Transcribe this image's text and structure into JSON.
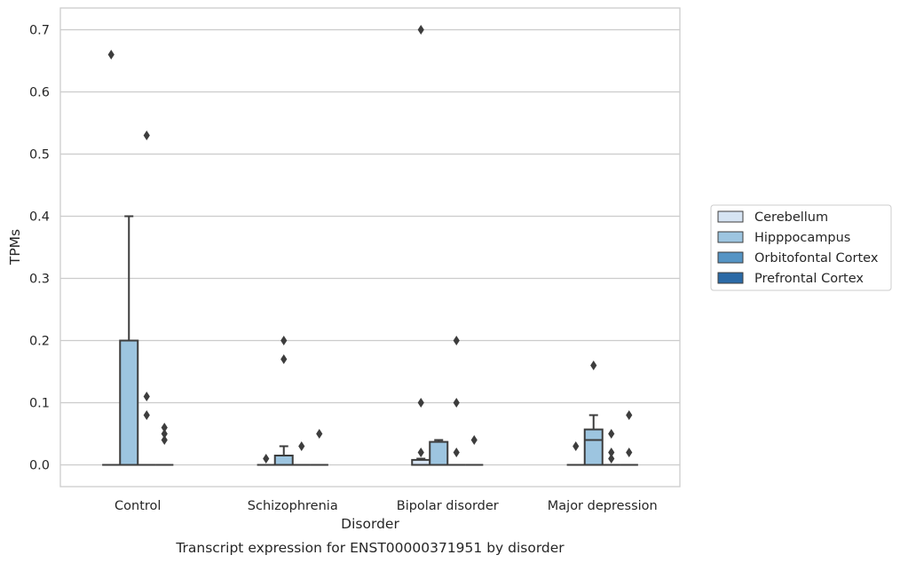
{
  "chart_data": {
    "type": "box",
    "caption": "Transcript expression for ENST00000371951 by disorder",
    "xlabel": "Disorder",
    "ylabel": "TPMs",
    "ylim": [
      -0.035,
      0.735
    ],
    "yticks": [
      "0.0",
      "0.1",
      "0.2",
      "0.3",
      "0.4",
      "0.5",
      "0.6",
      "0.7"
    ],
    "grid": "horizontal",
    "legend_position": "right",
    "categories": [
      "Control",
      "Schizophrenia",
      "Bipolar disorder",
      "Major depression"
    ],
    "series": [
      {
        "name": "Cerebellum",
        "color": "#d6e4f3",
        "boxes": [
          {
            "q1": 0,
            "median": 0,
            "q3": 0,
            "whisker_low": 0,
            "whisker_high": 0,
            "outliers": [
              0.66
            ]
          },
          {
            "q1": 0,
            "median": 0,
            "q3": 0,
            "whisker_low": 0,
            "whisker_high": 0,
            "outliers": [
              0.01
            ]
          },
          {
            "q1": 0,
            "median": 0,
            "q3": 0.008,
            "whisker_low": 0,
            "whisker_high": 0.01,
            "outliers": [
              0.1,
              0.02,
              0.7
            ]
          },
          {
            "q1": 0,
            "median": 0,
            "q3": 0,
            "whisker_low": 0,
            "whisker_high": 0,
            "outliers": [
              0.03
            ]
          }
        ]
      },
      {
        "name": "Hipppocampus",
        "color": "#9dc5e0",
        "boxes": [
          {
            "q1": 0,
            "median": 0,
            "q3": 0.2,
            "whisker_low": 0,
            "whisker_high": 0.4,
            "outliers": []
          },
          {
            "q1": 0,
            "median": 0,
            "q3": 0.015,
            "whisker_low": 0,
            "whisker_high": 0.03,
            "outliers": [
              0.2,
              0.17
            ]
          },
          {
            "q1": 0,
            "median": 0,
            "q3": 0.037,
            "whisker_low": 0,
            "whisker_high": 0.04,
            "outliers": []
          },
          {
            "q1": 0,
            "median": 0.04,
            "q3": 0.057,
            "whisker_low": 0,
            "whisker_high": 0.08,
            "outliers": [
              0.16
            ]
          }
        ]
      },
      {
        "name": "Orbitofontal Cortex",
        "color": "#5594c4",
        "boxes": [
          {
            "q1": 0,
            "median": 0,
            "q3": 0,
            "whisker_low": 0,
            "whisker_high": 0,
            "outliers": [
              0.11,
              0.08,
              0.53
            ]
          },
          {
            "q1": 0,
            "median": 0,
            "q3": 0,
            "whisker_low": 0,
            "whisker_high": 0,
            "outliers": [
              0.03
            ]
          },
          {
            "q1": 0,
            "median": 0,
            "q3": 0,
            "whisker_low": 0,
            "whisker_high": 0,
            "outliers": [
              0.1,
              0.2,
              0.02
            ]
          },
          {
            "q1": 0,
            "median": 0,
            "q3": 0,
            "whisker_low": 0,
            "whisker_high": 0,
            "outliers": [
              0.05,
              0.02,
              0.01
            ]
          }
        ]
      },
      {
        "name": "Prefrontal Cortex",
        "color": "#2b6aa6",
        "boxes": [
          {
            "q1": 0,
            "median": 0,
            "q3": 0,
            "whisker_low": 0,
            "whisker_high": 0,
            "outliers": [
              0.06,
              0.05,
              0.04
            ]
          },
          {
            "q1": 0,
            "median": 0,
            "q3": 0,
            "whisker_low": 0,
            "whisker_high": 0,
            "outliers": [
              0.05
            ]
          },
          {
            "q1": 0,
            "median": 0,
            "q3": 0,
            "whisker_low": 0,
            "whisker_high": 0,
            "outliers": [
              0.04
            ]
          },
          {
            "q1": 0,
            "median": 0,
            "q3": 0,
            "whisker_low": 0,
            "whisker_high": 0,
            "outliers": [
              0.08,
              0.02
            ]
          }
        ]
      }
    ]
  }
}
